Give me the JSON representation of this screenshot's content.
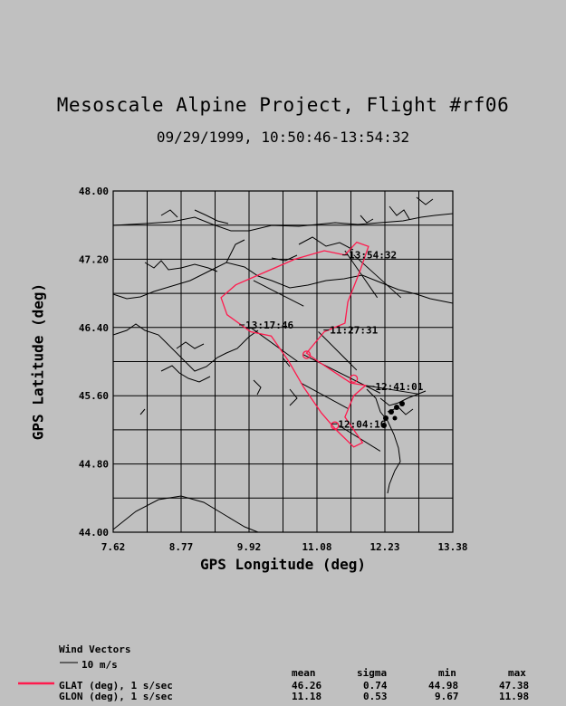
{
  "title": "Mesoscale Alpine Project, Flight #rf06",
  "subtitle": "09/29/1999, 10:50:46-13:54:32",
  "chart_data": {
    "type": "map-track",
    "xlabel": "GPS Longitude (deg)",
    "ylabel": "GPS Latitude (deg)",
    "xlim": [
      7.62,
      13.38
    ],
    "ylim": [
      44.0,
      48.0
    ],
    "x_ticks": [
      "7.62",
      "8.77",
      "9.92",
      "11.08",
      "12.23",
      "13.38"
    ],
    "y_ticks": [
      "44.00",
      "44.80",
      "45.60",
      "46.40",
      "47.20",
      "48.00"
    ],
    "grid": true,
    "track_color": "#ff1a4d",
    "track": [
      [
        11.55,
        47.25
      ],
      [
        11.75,
        47.4
      ],
      [
        11.95,
        47.35
      ],
      [
        11.8,
        47.05
      ],
      [
        11.6,
        46.7
      ],
      [
        11.55,
        46.45
      ],
      [
        11.2,
        46.35
      ],
      [
        10.9,
        46.1
      ],
      [
        11.1,
        46.0
      ],
      [
        11.65,
        45.75
      ],
      [
        11.9,
        45.72
      ],
      [
        11.7,
        45.6
      ],
      [
        11.55,
        45.35
      ],
      [
        11.7,
        45.2
      ],
      [
        11.85,
        45.05
      ],
      [
        11.7,
        45.0
      ],
      [
        11.4,
        45.2
      ],
      [
        11.15,
        45.4
      ],
      [
        10.85,
        45.7
      ],
      [
        10.6,
        46.0
      ],
      [
        10.3,
        46.3
      ],
      [
        9.95,
        46.35
      ],
      [
        9.55,
        46.55
      ],
      [
        9.45,
        46.75
      ],
      [
        9.7,
        46.9
      ],
      [
        10.2,
        47.05
      ],
      [
        10.7,
        47.2
      ],
      [
        11.2,
        47.3
      ],
      [
        11.55,
        47.25
      ]
    ],
    "time_labels": [
      {
        "text": "13:54:32",
        "lon": 11.6,
        "lat": 47.25
      },
      {
        "text": "13:17:46",
        "lon": 9.85,
        "lat": 46.43
      },
      {
        "text": "11:27:31",
        "lon": 11.28,
        "lat": 46.37
      },
      {
        "text": "12:41:01",
        "lon": 12.05,
        "lat": 45.71
      },
      {
        "text": "12:04:16",
        "lon": 11.42,
        "lat": 45.27
      }
    ],
    "wind_vectors": [
      [
        11.55,
        47.3,
        0.55,
        -0.55
      ],
      [
        11.7,
        47.25,
        0.8,
        -0.5
      ],
      [
        10.0,
        46.95,
        0.85,
        -0.3
      ],
      [
        9.95,
        46.4,
        0.8,
        -0.4
      ],
      [
        11.1,
        46.35,
        0.65,
        -0.45
      ],
      [
        10.85,
        46.08,
        1.3,
        -0.45
      ],
      [
        10.8,
        45.75,
        0.8,
        -0.3
      ],
      [
        11.45,
        45.25,
        0.7,
        -0.3
      ],
      [
        11.9,
        45.72,
        0.9,
        -0.1
      ]
    ],
    "circle_markers": [
      [
        10.9,
        46.08
      ],
      [
        11.7,
        45.8
      ],
      [
        11.38,
        45.25
      ]
    ]
  },
  "legend": {
    "wind_title": "Wind Vectors",
    "wind_scale": "10 m/s",
    "series": [
      {
        "label": "GLAT (deg), 1 s/sec",
        "color": "#ff1a4d",
        "mean": "46.26",
        "sigma": "0.74",
        "min": "44.98",
        "max": "47.38"
      },
      {
        "label": "GLON (deg), 1 s/sec",
        "color": "",
        "mean": "11.18",
        "sigma": "0.53",
        "min": "9.67",
        "max": "11.98"
      }
    ],
    "headers": {
      "mean": "mean",
      "sigma": "sigma",
      "min": "min",
      "max": "max"
    }
  }
}
